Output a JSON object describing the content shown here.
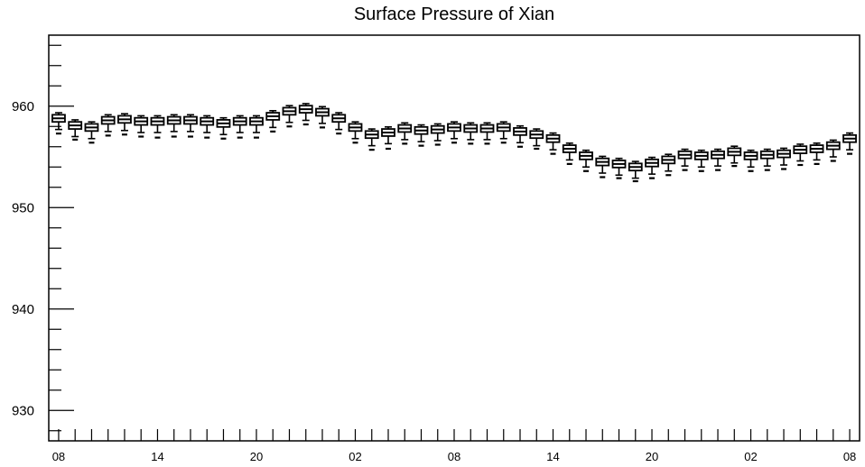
{
  "chart_data": {
    "type": "box",
    "title": "Surface Pressure of Xian",
    "xlabel": "",
    "ylabel": "",
    "ylim": [
      927,
      967
    ],
    "yticks": [
      930,
      940,
      950,
      960
    ],
    "xlim": [
      -0.6,
      48.6
    ],
    "x_tick_labels": [
      {
        "x": 0,
        "label": "08"
      },
      {
        "x": 6,
        "label": "14"
      },
      {
        "x": 12,
        "label": "20"
      },
      {
        "x": 18,
        "label": "02"
      },
      {
        "x": 24,
        "label": "08"
      },
      {
        "x": 30,
        "label": "14"
      },
      {
        "x": 36,
        "label": "20"
      },
      {
        "x": 42,
        "label": "02"
      },
      {
        "x": 48,
        "label": "08"
      }
    ],
    "grid": false,
    "medians": [
      958.8,
      958.1,
      957.9,
      958.6,
      958.7,
      958.5,
      958.5,
      958.6,
      958.6,
      958.5,
      958.3,
      958.5,
      958.5,
      959.0,
      959.5,
      959.7,
      959.4,
      958.8,
      957.9,
      957.2,
      957.4,
      957.8,
      957.6,
      957.7,
      957.9,
      957.8,
      957.8,
      957.9,
      957.5,
      957.2,
      956.8,
      955.8,
      955.1,
      954.5,
      954.3,
      954.0,
      954.4,
      954.7,
      955.2,
      955.1,
      955.2,
      955.5,
      955.1,
      955.2,
      955.3,
      955.7,
      955.8,
      956.1,
      956.8
    ],
    "outliers": [
      957.3,
      956.7,
      956.4,
      957.1,
      957.2,
      957.0,
      956.9,
      957.0,
      957.0,
      956.9,
      956.8,
      956.9,
      956.9,
      957.5,
      958.0,
      958.2,
      957.9,
      957.3,
      956.4,
      955.7,
      955.8,
      956.3,
      956.1,
      956.2,
      956.4,
      956.3,
      956.3,
      956.4,
      956.0,
      955.8,
      955.3,
      954.3,
      953.6,
      953.0,
      952.9,
      952.6,
      952.9,
      953.2,
      953.7,
      953.6,
      953.7,
      954.1,
      953.6,
      953.7,
      953.8,
      954.2,
      954.3,
      954.6,
      955.3
    ]
  }
}
